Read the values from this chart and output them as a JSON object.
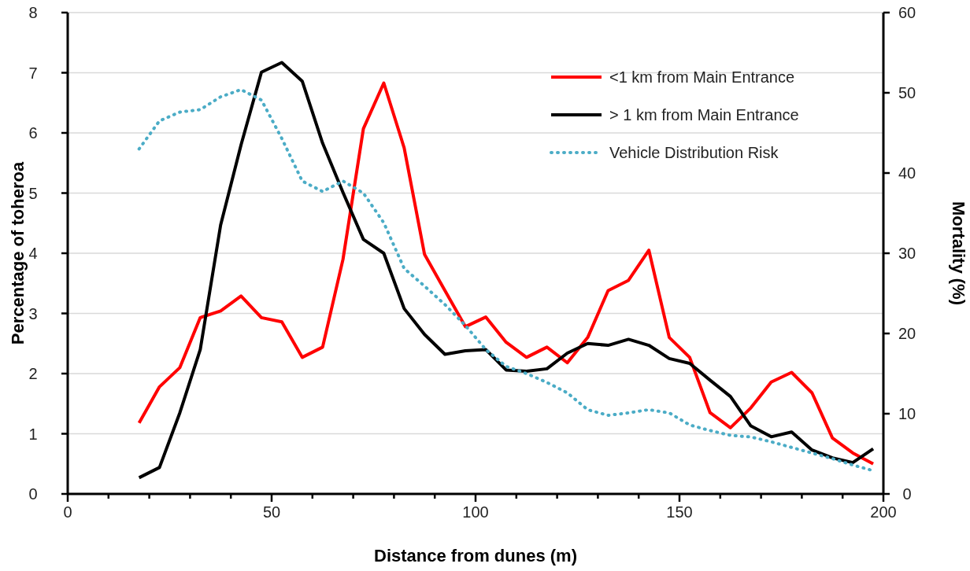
{
  "chart_data": {
    "type": "line",
    "xlabel": "Distance from dunes (m)",
    "ylabel": "Percentage of toheroa",
    "y2label": "Mortality (%)",
    "x": [
      17.5,
      22.5,
      27.5,
      32.5,
      37.5,
      42.5,
      47.5,
      52.5,
      57.5,
      62.5,
      67.5,
      72.5,
      77.5,
      82.5,
      87.5,
      92.5,
      97.5,
      102.5,
      107.5,
      112.5,
      117.5,
      122.5,
      127.5,
      132.5,
      137.5,
      142.5,
      147.5,
      152.5,
      157.5,
      162.5,
      167.5,
      172.5,
      177.5,
      182.5,
      187.5,
      192.5,
      197.5
    ],
    "series": [
      {
        "name": "<1 km from Main Entrance",
        "color": "#ff0000",
        "line_style": "solid",
        "values": [
          1.18,
          1.78,
          2.1,
          2.93,
          3.04,
          3.29,
          2.93,
          2.86,
          2.27,
          2.44,
          3.9,
          6.07,
          6.83,
          5.75,
          3.98,
          3.38,
          2.78,
          2.94,
          2.52,
          2.27,
          2.44,
          2.18,
          2.6,
          3.38,
          3.55,
          4.05,
          2.6,
          2.27,
          1.35,
          1.1,
          1.43,
          1.86,
          2.02,
          1.68,
          0.93,
          0.68,
          0.5
        ]
      },
      {
        "name": "> 1 km from Main Entrance",
        "color": "#000000",
        "line_style": "solid",
        "values": [
          0.27,
          0.44,
          1.35,
          2.4,
          4.47,
          5.8,
          7.01,
          7.17,
          6.86,
          5.83,
          5.01,
          4.23,
          4.0,
          3.08,
          2.65,
          2.32,
          2.38,
          2.4,
          2.06,
          2.04,
          2.08,
          2.34,
          2.5,
          2.47,
          2.57,
          2.47,
          2.25,
          2.17,
          1.89,
          1.62,
          1.13,
          0.95,
          1.03,
          0.73,
          0.6,
          0.52,
          0.75
        ]
      },
      {
        "name": "Vehicle Distribution Risk",
        "color": "#4bacc6",
        "line_style": "dotted",
        "axis": "y2",
        "values": [
          43,
          46.5,
          47.6,
          47.9,
          49.5,
          50.4,
          49.1,
          44.3,
          39,
          37.7,
          39,
          37.5,
          33.8,
          28.1,
          25.9,
          23.6,
          21,
          18,
          15.9,
          15,
          13.9,
          12.6,
          10.5,
          9.8,
          10.1,
          10.5,
          10.1,
          8.6,
          7.9,
          7.3,
          7.1,
          6.5,
          5.8,
          5.1,
          4.4,
          3.6,
          2.9
        ]
      }
    ],
    "xlim": [
      0,
      200
    ],
    "xticks": [
      0,
      {
        "value": 10,
        "label": null
      },
      {
        "value": 20,
        "label": null
      },
      {
        "value": 30,
        "label": null
      },
      {
        "value": 40,
        "label": null
      },
      50,
      {
        "value": 60,
        "label": null
      },
      {
        "value": 70,
        "label": null
      },
      {
        "value": 80,
        "label": null
      },
      {
        "value": 90,
        "label": null
      },
      100,
      {
        "value": 110,
        "label": null
      },
      {
        "value": 120,
        "label": null
      },
      {
        "value": 130,
        "label": null
      },
      {
        "value": 140,
        "label": null
      },
      150,
      {
        "value": 160,
        "label": null
      },
      {
        "value": 170,
        "label": null
      },
      {
        "value": 180,
        "label": null
      },
      {
        "value": 190,
        "label": null
      },
      200
    ],
    "ylim": [
      0,
      8
    ],
    "yticks": [
      0,
      1,
      2,
      3,
      4,
      5,
      6,
      7,
      8
    ],
    "y2lim": [
      0,
      60
    ],
    "y2ticks": [
      0,
      10,
      20,
      30,
      40,
      50,
      60
    ],
    "grid": "y",
    "legend": "top right",
    "marker": "none"
  }
}
